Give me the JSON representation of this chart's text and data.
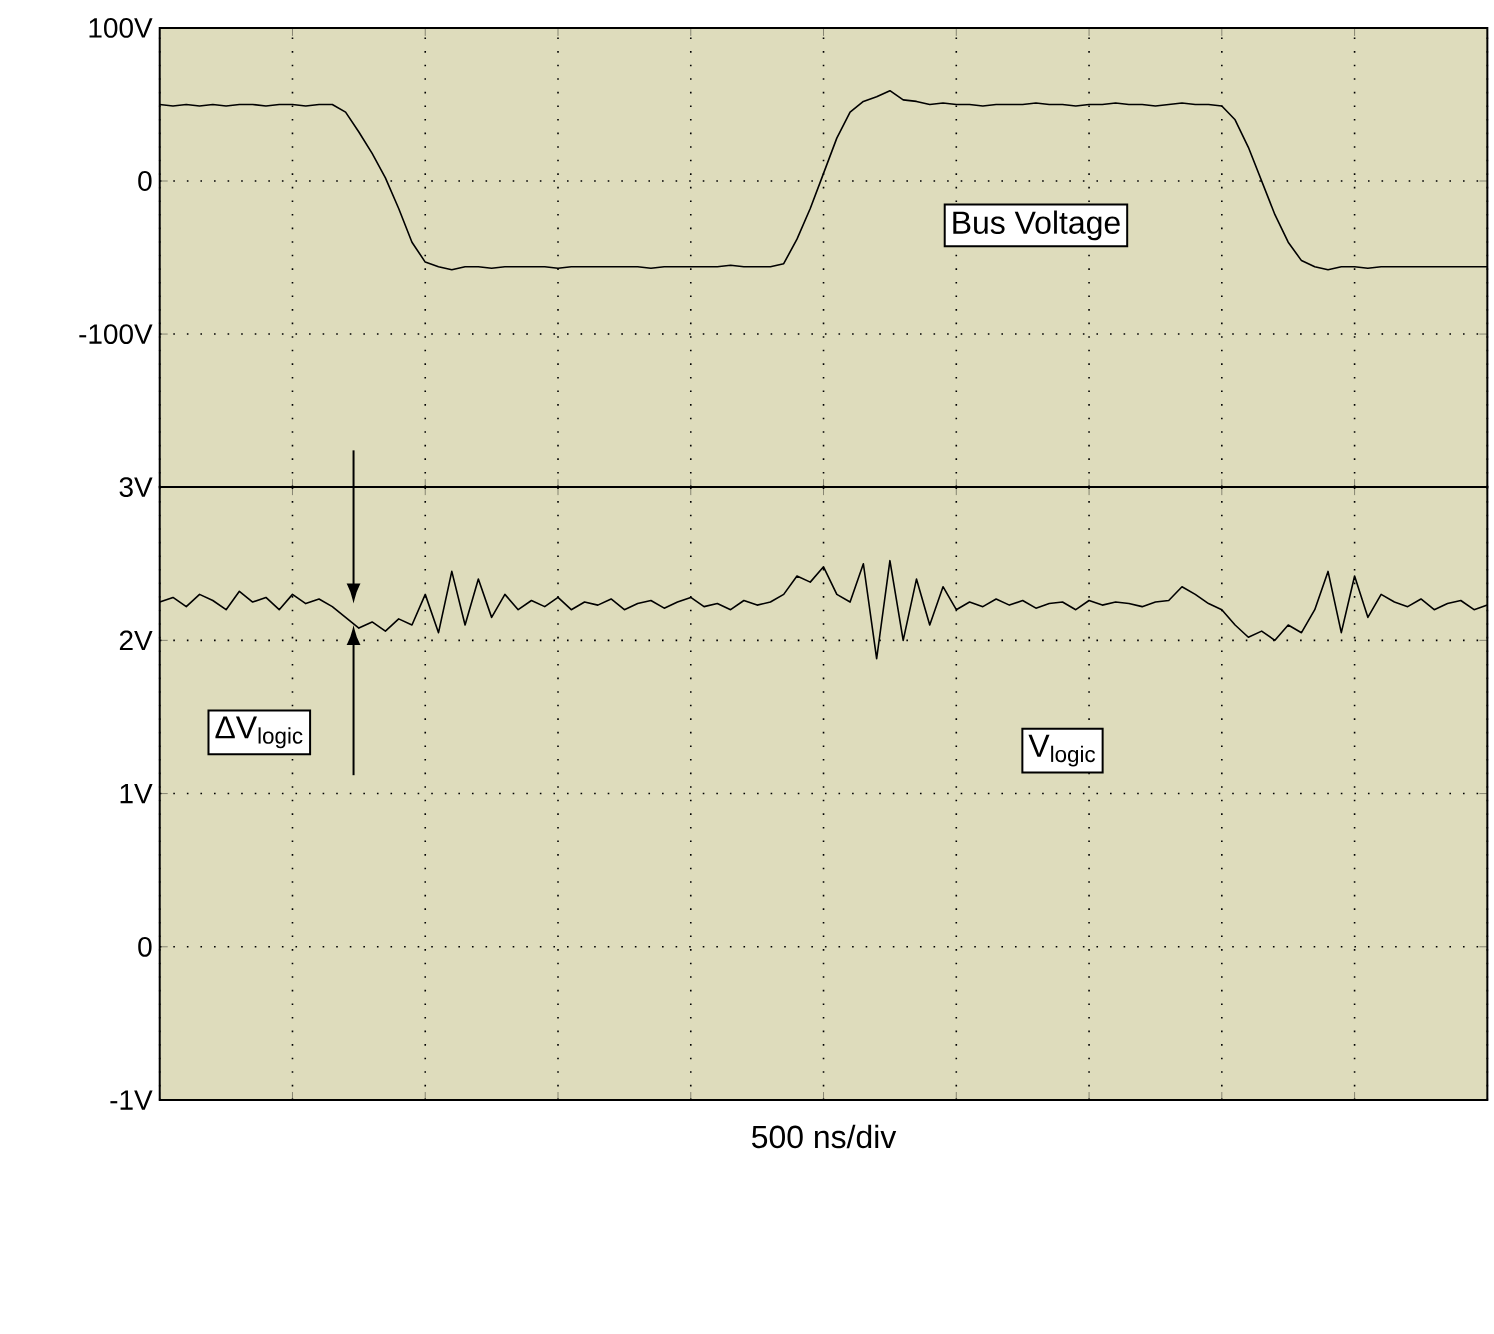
{
  "chart_data": [
    {
      "type": "line",
      "color": "#000000",
      "categories": [
        null,
        null,
        null,
        null,
        null,
        null,
        null,
        null,
        null,
        null,
        null,
        null,
        null,
        null,
        null,
        null,
        null,
        null,
        null,
        null,
        null,
        null,
        null,
        null,
        null,
        null,
        null,
        null,
        null,
        null,
        null,
        null,
        null,
        null,
        null,
        null,
        null,
        null,
        null,
        null,
        null,
        null,
        null,
        null,
        null,
        null,
        null,
        null,
        null,
        null,
        null,
        null,
        null,
        null,
        null,
        null,
        null,
        null,
        null,
        null,
        null,
        null,
        null,
        null,
        null,
        null,
        null,
        null,
        null,
        null,
        null,
        null,
        null,
        null,
        null,
        null,
        null,
        null,
        null,
        null,
        null,
        null,
        null,
        null,
        null,
        null,
        null,
        null,
        null,
        null,
        null,
        null,
        null,
        null,
        null,
        null,
        null,
        null,
        null,
        null,
        null
      ],
      "values": [
        50,
        49,
        50,
        49,
        50,
        49,
        50,
        50,
        49,
        50,
        50,
        49,
        50,
        50,
        45,
        32,
        18,
        2,
        -18,
        -40,
        -53,
        -56,
        -58,
        -56,
        -56,
        -57,
        -56,
        -56,
        -56,
        -56,
        -57,
        -56,
        -56,
        -56,
        -56,
        -56,
        -56,
        -57,
        -56,
        -56,
        -56,
        -56,
        -56,
        -55,
        -56,
        -56,
        -56,
        -54,
        -38,
        -18,
        5,
        28,
        45,
        52,
        55,
        59,
        53,
        52,
        50,
        51,
        50,
        50,
        49,
        50,
        50,
        50,
        51,
        50,
        50,
        49,
        50,
        50,
        51,
        50,
        50,
        49,
        50,
        51,
        50,
        50,
        49,
        40,
        22,
        0,
        -22,
        -40,
        -52,
        -56,
        -58,
        -56,
        -56,
        -57,
        -56,
        -56,
        -56,
        -56,
        -56,
        -56,
        -56,
        -56,
        -56
      ],
      "ylim": [
        -200,
        100
      ],
      "yticks": [
        {
          "value": 100,
          "label": "100V"
        },
        {
          "value": 0,
          "label": "0"
        },
        {
          "value": -100,
          "label": "-100V"
        }
      ],
      "grid": true,
      "tick_labels": "y",
      "annotations": [
        "Bus Voltage"
      ]
    },
    {
      "type": "line",
      "color": "#000000",
      "categories": [
        null,
        null,
        null,
        null,
        null,
        null,
        null,
        null,
        null,
        null,
        null,
        null,
        null,
        null,
        null,
        null,
        null,
        null,
        null,
        null,
        null,
        null,
        null,
        null,
        null,
        null,
        null,
        null,
        null,
        null,
        null,
        null,
        null,
        null,
        null,
        null,
        null,
        null,
        null,
        null,
        null,
        null,
        null,
        null,
        null,
        null,
        null,
        null,
        null,
        null,
        null,
        null,
        null,
        null,
        null,
        null,
        null,
        null,
        null,
        null,
        null,
        null,
        null,
        null,
        null,
        null,
        null,
        null,
        null,
        null,
        null,
        null,
        null,
        null,
        null,
        null,
        null,
        null,
        null,
        null,
        null,
        null,
        null,
        null,
        null,
        null,
        null,
        null,
        null,
        null,
        null,
        null,
        null,
        null,
        null,
        null,
        null,
        null,
        null,
        null,
        null
      ],
      "values": [
        2.25,
        2.28,
        2.22,
        2.3,
        2.26,
        2.2,
        2.32,
        2.25,
        2.28,
        2.2,
        2.3,
        2.24,
        2.27,
        2.22,
        2.15,
        2.08,
        2.12,
        2.06,
        2.14,
        2.1,
        2.3,
        2.05,
        2.45,
        2.1,
        2.4,
        2.15,
        2.3,
        2.2,
        2.26,
        2.22,
        2.28,
        2.2,
        2.25,
        2.23,
        2.27,
        2.2,
        2.24,
        2.26,
        2.21,
        2.25,
        2.28,
        2.22,
        2.24,
        2.2,
        2.26,
        2.23,
        2.25,
        2.3,
        2.42,
        2.38,
        2.48,
        2.3,
        2.25,
        2.5,
        1.88,
        2.52,
        2.0,
        2.4,
        2.1,
        2.35,
        2.2,
        2.25,
        2.22,
        2.27,
        2.23,
        2.26,
        2.21,
        2.24,
        2.25,
        2.2,
        2.26,
        2.23,
        2.25,
        2.24,
        2.22,
        2.25,
        2.26,
        2.35,
        2.3,
        2.24,
        2.2,
        2.1,
        2.02,
        2.06,
        2.0,
        2.1,
        2.05,
        2.2,
        2.45,
        2.05,
        2.42,
        2.15,
        2.3,
        2.25,
        2.22,
        2.27,
        2.2,
        2.24,
        2.26,
        2.2,
        2.23
      ],
      "ylim": [
        -1,
        3
      ],
      "yticks": [
        {
          "value": 3,
          "label": "3V"
        },
        {
          "value": 2,
          "label": "2V"
        },
        {
          "value": 1,
          "label": "1V"
        },
        {
          "value": 0,
          "label": "0"
        },
        {
          "value": -1,
          "label": "-1V"
        }
      ],
      "grid": true,
      "tick_labels": "y",
      "xlabel": "500 ns/div",
      "annotations": [
        "ΔV$_{logic}$",
        "V$_{logic}$"
      ]
    }
  ]
}
